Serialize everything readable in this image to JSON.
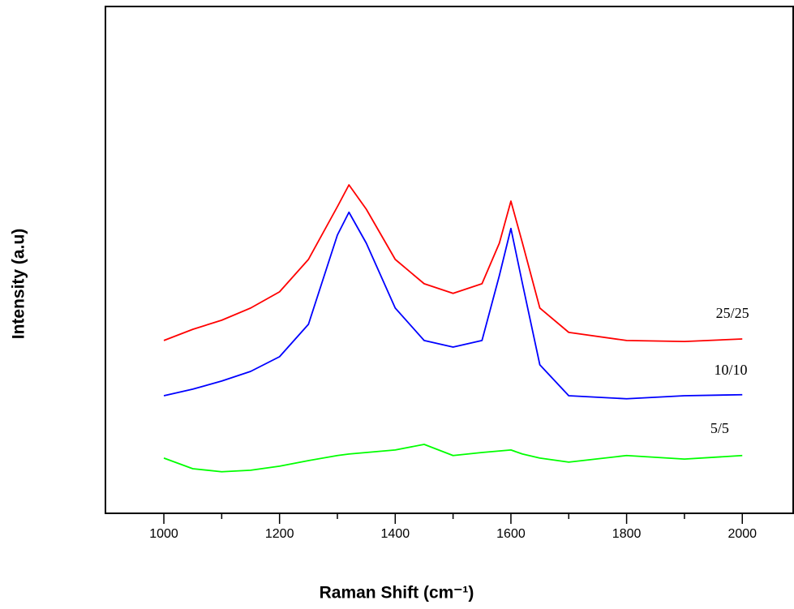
{
  "chart_data": {
    "type": "line",
    "x_label": "Raman Shift (cm⁻¹)",
    "y_label": "Intensity (a.u)",
    "x": [
      1000,
      1050,
      1100,
      1150,
      1200,
      1250,
      1300,
      1320,
      1350,
      1400,
      1450,
      1500,
      1550,
      1580,
      1600,
      1620,
      1650,
      1700,
      1800,
      1900,
      2000
    ],
    "series": [
      {
        "name": "25/25",
        "color": "#ff0000",
        "values": [
          34.1,
          36.3,
          38.1,
          40.5,
          43.7,
          50.1,
          60.5,
          64.8,
          60.0,
          50.1,
          45.3,
          43.4,
          45.3,
          53.3,
          61.6,
          53.3,
          40.5,
          35.7,
          34.1,
          33.9,
          34.4
        ]
      },
      {
        "name": "10/10",
        "color": "#0000ff",
        "values": [
          23.2,
          24.5,
          26.1,
          28.0,
          30.9,
          37.3,
          54.9,
          59.4,
          53.3,
          40.5,
          34.1,
          32.8,
          34.1,
          46.9,
          56.2,
          45.3,
          29.3,
          23.2,
          22.6,
          23.2,
          23.4
        ]
      },
      {
        "name": "5/5",
        "color": "#00ff00",
        "values": [
          10.9,
          8.8,
          8.2,
          8.5,
          9.3,
          10.4,
          11.4,
          11.7,
          12.0,
          12.5,
          13.6,
          11.4,
          12.0,
          12.3,
          12.5,
          11.7,
          10.9,
          10.1,
          11.4,
          10.7,
          11.4
        ]
      }
    ],
    "annotations": [
      {
        "text": "25/25",
        "x": 1983,
        "y": 39.2
      },
      {
        "text": "10/10",
        "x": 1980,
        "y": 28.0
      },
      {
        "text": "5/5",
        "x": 1961,
        "y": 16.5
      }
    ],
    "xlim": [
      899,
      2088
    ],
    "ylim": [
      0,
      100
    ],
    "xticks": [
      1000,
      1200,
      1400,
      1600,
      1800,
      2000
    ],
    "xticks_minor": [
      1100,
      1300,
      1500,
      1700,
      1900
    ],
    "grid": false
  }
}
